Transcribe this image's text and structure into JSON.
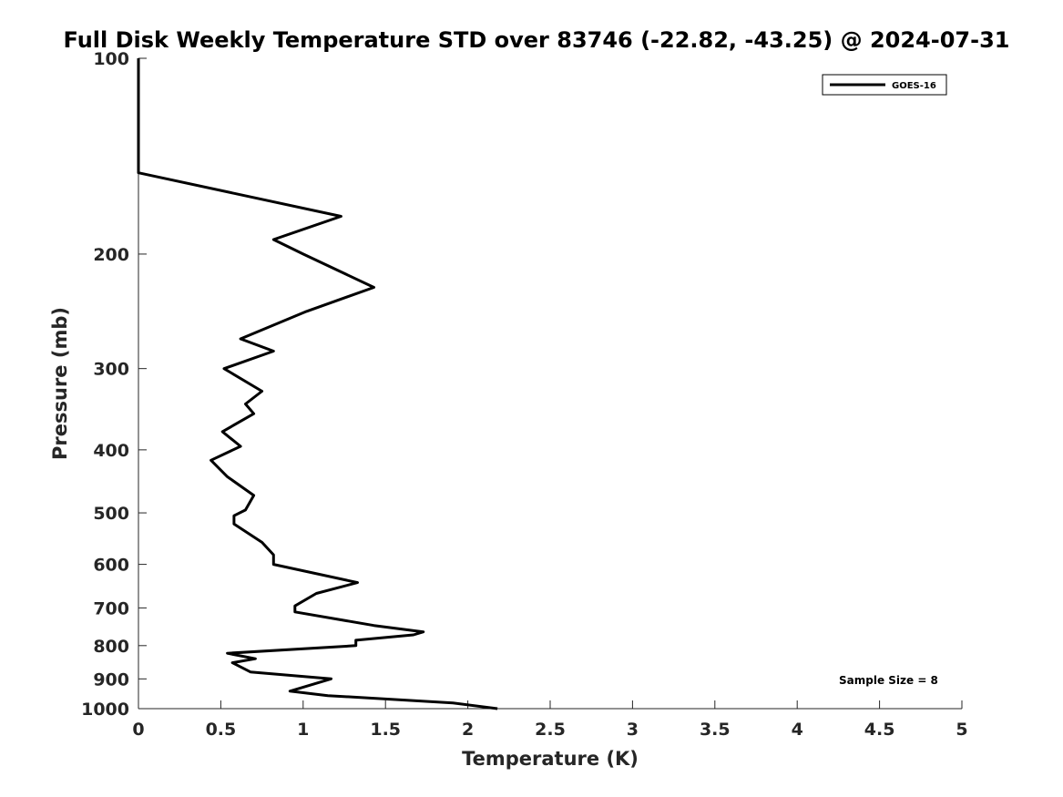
{
  "chart_data": {
    "type": "line",
    "title": "Full Disk Weekly Temperature STD over 83746 (-22.82, -43.25) @ 2024-07-31",
    "xlabel": "Temperature (K)",
    "ylabel": "Pressure (mb)",
    "xlim": [
      0,
      5
    ],
    "ylim": [
      100,
      1000
    ],
    "y_scale": "log",
    "y_reversed": true,
    "x_ticks": [
      0,
      0.5,
      1,
      1.5,
      2,
      2.5,
      3,
      3.5,
      4,
      4.5,
      5
    ],
    "x_tick_labels": [
      "0",
      "0.5",
      "1",
      "1.5",
      "2",
      "2.5",
      "3",
      "3.5",
      "4",
      "4.5",
      "5"
    ],
    "y_ticks": [
      100,
      200,
      300,
      400,
      500,
      600,
      700,
      800,
      900,
      1000
    ],
    "y_tick_labels": [
      "100",
      "200",
      "300",
      "400",
      "500",
      "600",
      "700",
      "800",
      "900",
      "1000"
    ],
    "grid": false,
    "legend_position": "top-right",
    "annotation": "Sample Size = 8",
    "series": [
      {
        "name": "GOES-16",
        "color": "#000000",
        "points": [
          [
            0,
            100
          ],
          [
            0,
            150
          ],
          [
            1.23,
            175
          ],
          [
            0.82,
            190
          ],
          [
            1.0,
            200
          ],
          [
            1.43,
            225
          ],
          [
            1.02,
            245
          ],
          [
            0.62,
            270
          ],
          [
            0.82,
            282
          ],
          [
            0.52,
            300
          ],
          [
            0.75,
            325
          ],
          [
            0.65,
            340
          ],
          [
            0.7,
            352
          ],
          [
            0.51,
            375
          ],
          [
            0.62,
            395
          ],
          [
            0.44,
            415
          ],
          [
            0.54,
            440
          ],
          [
            0.7,
            470
          ],
          [
            0.65,
            495
          ],
          [
            0.58,
            505
          ],
          [
            0.58,
            520
          ],
          [
            0.75,
            555
          ],
          [
            0.82,
            580
          ],
          [
            0.82,
            600
          ],
          [
            1.33,
            640
          ],
          [
            1.08,
            665
          ],
          [
            0.95,
            695
          ],
          [
            0.95,
            710
          ],
          [
            1.43,
            745
          ],
          [
            1.73,
            762
          ],
          [
            1.67,
            770
          ],
          [
            1.32,
            785
          ],
          [
            1.32,
            800
          ],
          [
            0.54,
            822
          ],
          [
            0.71,
            838
          ],
          [
            0.57,
            850
          ],
          [
            0.68,
            878
          ],
          [
            1.17,
            900
          ],
          [
            0.92,
            940
          ],
          [
            1.15,
            955
          ],
          [
            1.91,
            980
          ],
          [
            2.18,
            1000
          ]
        ]
      }
    ]
  }
}
